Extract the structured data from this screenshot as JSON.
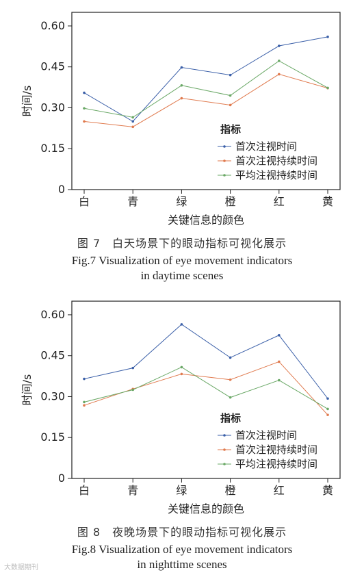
{
  "figures": [
    {
      "caption_zh": "图 7　白天场景下的眼动指标可视化展示",
      "caption_en_line1": "Fig.7 Visualization of eye movement indicators",
      "caption_en_line2": "in daytime scenes"
    },
    {
      "caption_zh": "图 8　夜晚场景下的眼动指标可视化展示",
      "caption_en_line1": "Fig.8 Visualization of eye movement indicators",
      "caption_en_line2": "in nighttime scenes"
    }
  ],
  "watermark": "大数据期刊",
  "chart_data": [
    {
      "type": "line",
      "xlabel": "关键信息的颜色",
      "ylabel": "时间/s",
      "categories": [
        "白",
        "青",
        "绿",
        "橙",
        "红",
        "黄"
      ],
      "yticks": [
        "0",
        "0.15",
        "0.30",
        "0.45",
        "0.60"
      ],
      "ylim": [
        0,
        0.65
      ],
      "legend_title": "指标",
      "legend_position": "lower-right",
      "grid": false,
      "series": [
        {
          "name": "首次注视时间",
          "color": "#3a5fa8",
          "values": [
            0.355,
            0.25,
            0.448,
            0.42,
            0.527,
            0.56
          ]
        },
        {
          "name": "首次注视持续时间",
          "color": "#e07a4e",
          "values": [
            0.25,
            0.23,
            0.335,
            0.31,
            0.423,
            0.372
          ]
        },
        {
          "name": "平均注视持续时间",
          "color": "#6aa866",
          "values": [
            0.298,
            0.265,
            0.382,
            0.345,
            0.472,
            0.373
          ]
        }
      ]
    },
    {
      "type": "line",
      "xlabel": "关键信息的颜色",
      "ylabel": "时间/s",
      "categories": [
        "白",
        "青",
        "绿",
        "橙",
        "红",
        "黄"
      ],
      "yticks": [
        "0",
        "0.15",
        "0.30",
        "0.45",
        "0.60"
      ],
      "ylim": [
        0,
        0.65
      ],
      "legend_title": "指标",
      "legend_position": "lower-right",
      "grid": false,
      "series": [
        {
          "name": "首次注视时间",
          "color": "#3a5fa8",
          "values": [
            0.365,
            0.405,
            0.565,
            0.443,
            0.525,
            0.293
          ]
        },
        {
          "name": "首次注视持续时间",
          "color": "#e07a4e",
          "values": [
            0.268,
            0.328,
            0.383,
            0.362,
            0.428,
            0.233
          ]
        },
        {
          "name": "平均注视持续时间",
          "color": "#6aa866",
          "values": [
            0.28,
            0.325,
            0.408,
            0.297,
            0.36,
            0.255
          ]
        }
      ]
    }
  ]
}
